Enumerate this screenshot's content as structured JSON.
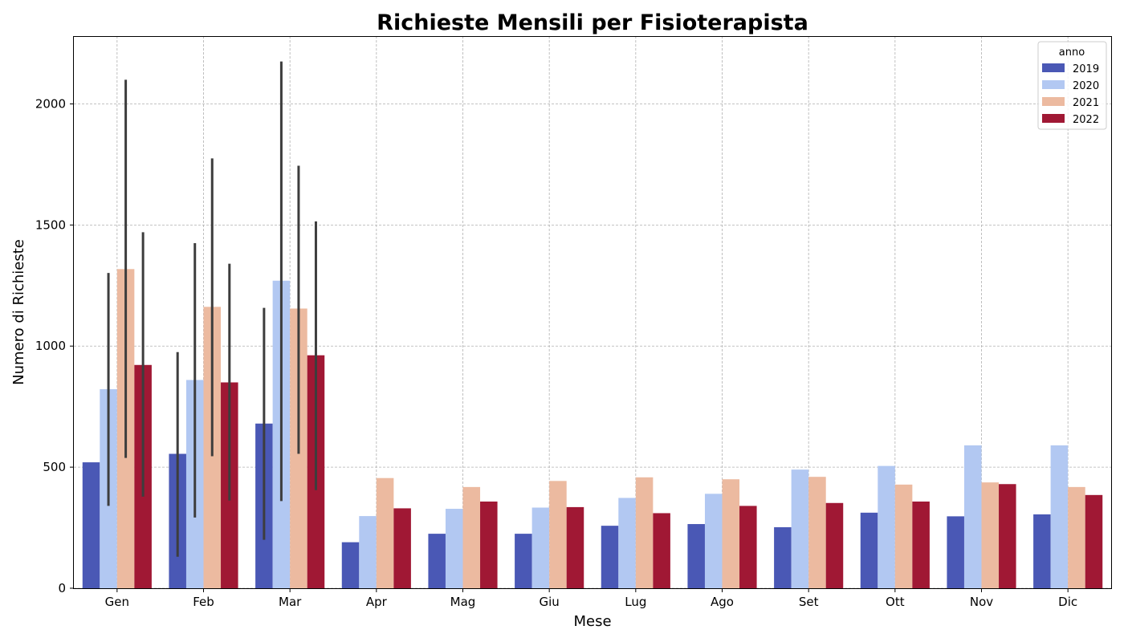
{
  "chart_data": {
    "type": "bar",
    "title": "Richieste Mensili per Fisioterapista",
    "xlabel": "Mese",
    "ylabel": "Numero di Richieste",
    "ylim": [
      0,
      2280
    ],
    "yticks": [
      0,
      500,
      1000,
      1500,
      2000
    ],
    "grid": true,
    "legend_title": "anno",
    "legend_position": "top-right",
    "categories": [
      "Gen",
      "Feb",
      "Mar",
      "Apr",
      "Mag",
      "Giu",
      "Lug",
      "Ago",
      "Set",
      "Ott",
      "Nov",
      "Dic"
    ],
    "series": [
      {
        "name": "2019",
        "color": "#4a58b5",
        "values": [
          520,
          555,
          680,
          190,
          225,
          225,
          258,
          265,
          252,
          312,
          297,
          305
        ],
        "error_low": [
          null,
          130,
          200,
          null,
          null,
          null,
          null,
          null,
          null,
          null,
          null,
          null
        ],
        "error_high": [
          null,
          975,
          1158,
          null,
          null,
          null,
          null,
          null,
          null,
          null,
          null,
          null
        ]
      },
      {
        "name": "2020",
        "color": "#b2c8f2",
        "values": [
          822,
          860,
          1270,
          298,
          328,
          333,
          373,
          390,
          490,
          505,
          590,
          590
        ],
        "error_low": [
          340,
          292,
          360,
          null,
          null,
          null,
          null,
          null,
          null,
          null,
          null,
          null
        ],
        "error_high": [
          1302,
          1425,
          2175,
          null,
          null,
          null,
          null,
          null,
          null,
          null,
          null,
          null
        ]
      },
      {
        "name": "2021",
        "color": "#ecbaa0",
        "values": [
          1318,
          1162,
          1155,
          455,
          418,
          443,
          458,
          450,
          460,
          428,
          437,
          418
        ],
        "error_low": [
          538,
          545,
          555,
          null,
          null,
          null,
          null,
          null,
          null,
          null,
          null,
          null
        ],
        "error_high": [
          2100,
          1775,
          1745,
          null,
          null,
          null,
          null,
          null,
          null,
          null,
          null,
          null
        ]
      },
      {
        "name": "2022",
        "color": "#a01834",
        "values": [
          922,
          850,
          962,
          330,
          358,
          335,
          310,
          340,
          352,
          358,
          430,
          385
        ],
        "error_low": [
          378,
          362,
          405,
          null,
          null,
          null,
          null,
          null,
          null,
          null,
          null,
          null
        ],
        "error_high": [
          1470,
          1340,
          1515,
          null,
          null,
          null,
          null,
          null,
          null,
          null,
          null,
          null
        ]
      }
    ]
  }
}
